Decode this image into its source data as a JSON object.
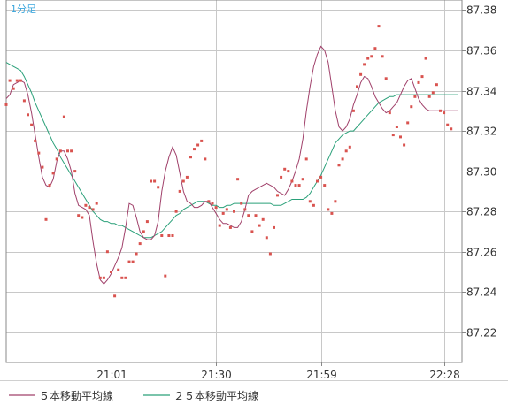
{
  "timeframe_label": "1分足",
  "legend": [
    {
      "label": "５本移動平均線",
      "color": "#a0406a"
    },
    {
      "label": "２５本移動平均線",
      "color": "#2aa079"
    }
  ],
  "colors": {
    "scatter": "#d9534f",
    "ma5": "#a0406a",
    "ma25": "#2aa079",
    "grid": "#c8c8c8",
    "frame": "#888888",
    "timeframe": "#3aa6dd"
  },
  "chart_data": {
    "type": "line",
    "ylim": [
      87.205,
      87.385
    ],
    "yticks": [
      87.38,
      87.36,
      87.34,
      87.32,
      87.3,
      87.28,
      87.26,
      87.24,
      87.22
    ],
    "ytick_labels": [
      "87.38",
      "87.36",
      "87.34",
      "87.32",
      "87.30",
      "87.28",
      "87.26",
      "87.24",
      "87.22"
    ],
    "xlim": [
      0,
      126
    ],
    "xticks": [
      29,
      58,
      87,
      121
    ],
    "xtick_labels": [
      "21:01",
      "21:30",
      "21:59",
      "22:28"
    ],
    "series": [
      {
        "kind": "scatter",
        "values": [
          87.333,
          87.345,
          87.341,
          87.345,
          87.345,
          87.335,
          87.328,
          87.323,
          87.315,
          87.309,
          87.302,
          87.276,
          87.293,
          87.299,
          87.306,
          87.31,
          87.327,
          87.31,
          87.31,
          87.3,
          87.278,
          87.277,
          87.283,
          87.282,
          87.281,
          87.284,
          87.247,
          87.247,
          87.26,
          87.25,
          87.238,
          87.251,
          87.247,
          87.247,
          87.255,
          87.255,
          87.259,
          87.264,
          87.27,
          87.275,
          87.295,
          87.295,
          87.292,
          87.268,
          87.248,
          87.268,
          87.268,
          87.28,
          87.29,
          87.295,
          87.297,
          87.307,
          87.311,
          87.313,
          87.315,
          87.306,
          87.285,
          87.284,
          87.282,
          87.273,
          87.279,
          87.281,
          87.272,
          87.28,
          87.296,
          87.284,
          87.281,
          87.278,
          87.27,
          87.278,
          87.273,
          87.276,
          87.267,
          87.259,
          87.272,
          87.288,
          87.297,
          87.301,
          87.3,
          87.295,
          87.293,
          87.293,
          87.296,
          87.306,
          87.285,
          87.283,
          87.295,
          87.297,
          87.293,
          87.281,
          87.279,
          87.285,
          87.303,
          87.306,
          87.31,
          87.312,
          87.33,
          87.342,
          87.348,
          87.353,
          87.356,
          87.357,
          87.361,
          87.372,
          87.357,
          87.346,
          87.329,
          87.318,
          87.322,
          87.317,
          87.313,
          87.324,
          87.332,
          87.337,
          87.344,
          87.347,
          87.356,
          87.337,
          87.339,
          87.343,
          87.33,
          87.329,
          87.323,
          87.321
        ]
      },
      {
        "name": "５本移動平均線",
        "values": [
          87.336,
          87.338,
          87.343,
          87.344,
          87.345,
          87.344,
          87.338,
          87.329,
          87.318,
          87.307,
          87.297,
          87.293,
          87.292,
          87.296,
          87.305,
          87.31,
          87.31,
          87.306,
          87.3,
          87.289,
          87.283,
          87.282,
          87.281,
          87.278,
          87.265,
          87.254,
          87.246,
          87.244,
          87.246,
          87.249,
          87.253,
          87.257,
          87.262,
          87.272,
          87.284,
          87.283,
          87.277,
          87.27,
          87.267,
          87.266,
          87.266,
          87.268,
          87.275,
          87.29,
          87.3,
          87.307,
          87.312,
          87.308,
          87.299,
          87.29,
          87.285,
          87.284,
          87.282,
          87.282,
          87.283,
          87.285,
          87.285,
          87.282,
          87.279,
          87.276,
          87.274,
          87.274,
          87.273,
          87.272,
          87.272,
          87.275,
          87.281,
          87.288,
          87.29,
          87.291,
          87.292,
          87.293,
          87.294,
          87.293,
          87.292,
          87.29,
          87.289,
          87.288,
          87.291,
          87.295,
          87.3,
          87.306,
          87.316,
          87.33,
          87.342,
          87.352,
          87.358,
          87.362,
          87.36,
          87.354,
          87.342,
          87.33,
          87.322,
          87.32,
          87.322,
          87.326,
          87.333,
          87.338,
          87.344,
          87.347,
          87.346,
          87.342,
          87.337,
          87.334,
          87.331,
          87.329,
          87.33,
          87.332,
          87.334,
          87.338,
          87.342,
          87.345,
          87.346,
          87.341,
          87.336,
          87.333,
          87.331,
          87.33,
          87.33,
          87.33,
          87.33,
          87.33,
          87.33,
          87.33,
          87.33,
          87.33
        ]
      },
      {
        "name": "２５本移動平均線",
        "values": [
          87.354,
          87.353,
          87.352,
          87.351,
          87.35,
          87.347,
          87.343,
          87.339,
          87.334,
          87.33,
          87.326,
          87.322,
          87.318,
          87.314,
          87.311,
          87.307,
          87.304,
          87.301,
          87.298,
          87.295,
          87.292,
          87.289,
          87.286,
          87.283,
          87.28,
          87.278,
          87.276,
          87.275,
          87.275,
          87.274,
          87.274,
          87.273,
          87.273,
          87.272,
          87.271,
          87.27,
          87.269,
          87.268,
          87.267,
          87.267,
          87.267,
          87.268,
          87.269,
          87.27,
          87.272,
          87.274,
          87.276,
          87.278,
          87.279,
          87.281,
          87.282,
          87.283,
          87.284,
          87.285,
          87.285,
          87.285,
          87.284,
          87.283,
          87.283,
          87.282,
          87.282,
          87.283,
          87.283,
          87.284,
          87.284,
          87.284,
          87.284,
          87.284,
          87.284,
          87.284,
          87.284,
          87.284,
          87.284,
          87.284,
          87.283,
          87.283,
          87.283,
          87.284,
          87.285,
          87.286,
          87.286,
          87.286,
          87.286,
          87.287,
          87.289,
          87.292,
          87.295,
          87.298,
          87.302,
          87.306,
          87.31,
          87.314,
          87.316,
          87.318,
          87.319,
          87.32,
          87.32,
          87.322,
          87.324,
          87.326,
          87.328,
          87.33,
          87.332,
          87.334,
          87.335,
          87.336,
          87.337,
          87.337,
          87.338,
          87.338,
          87.338,
          87.338,
          87.338,
          87.338,
          87.338,
          87.338,
          87.338,
          87.338,
          87.338,
          87.338,
          87.338,
          87.338,
          87.338,
          87.338,
          87.338,
          87.338
        ]
      }
    ]
  }
}
